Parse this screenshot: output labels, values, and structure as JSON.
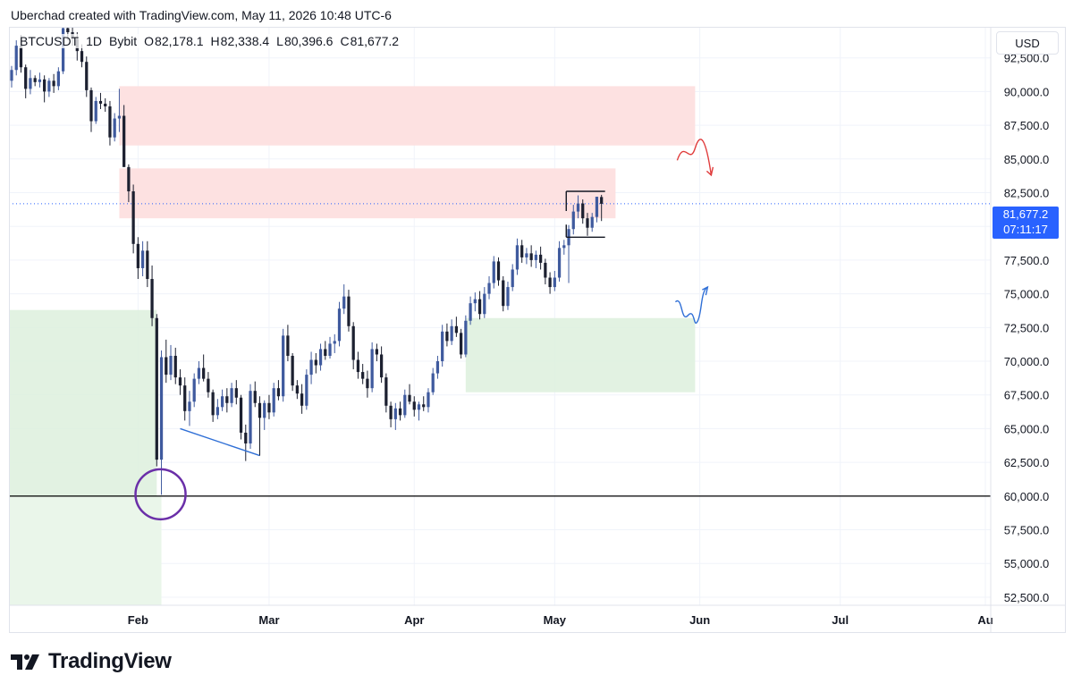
{
  "credit": "Uberchad created with TradingView.com, May 11, 2026 10:48 UTC-6",
  "symbol": {
    "name": "BTCUSDT",
    "interval": "1D",
    "exchange": "Bybit",
    "ohlc": [
      {
        "label": "O",
        "value": "82,178.1"
      },
      {
        "label": "H",
        "value": "82,338.4"
      },
      {
        "label": "L",
        "value": "80,396.6"
      },
      {
        "label": "C",
        "value": "81,677.2"
      }
    ]
  },
  "currency_button": "USD",
  "last_price": {
    "price": "81,677.2",
    "countdown": "07:11:17"
  },
  "brand": "TradingView",
  "colors": {
    "up": "#3f5a9e",
    "down": "#1c2030",
    "supply_zone": "#fde1e1",
    "demand_zone": "#ddf0dd",
    "trend_line": "#2f6fd6",
    "red_path": "#e03c3c",
    "blue_path": "#2f6fd6",
    "circle": "#6a2fa8",
    "price_line": "#2962ff"
  },
  "chart_data": {
    "type": "candlestick",
    "y_axis": {
      "ylim": [
        51900,
        94800
      ],
      "ticks": [
        92500,
        90000,
        87500,
        85000,
        82500,
        80000,
        77500,
        75000,
        72500,
        70000,
        67500,
        65000,
        62500,
        60000,
        57500,
        55000,
        52500
      ],
      "tick_labels": [
        "92,500.0",
        "90,000.0",
        "87,500.0",
        "85,000.0",
        "82,500.0",
        "80,000.0",
        "77,500.0",
        "75,000.0",
        "72,500.0",
        "70,000.0",
        "67,500.0",
        "65,000.0",
        "62,500.0",
        "60,000.0",
        "57,500.0",
        "55,000.0",
        "52,500.0"
      ]
    },
    "x_axis": {
      "xlim": [
        "2026-01-05",
        "2026-08-01"
      ],
      "ticks": [
        {
          "date": "2026-02-01",
          "label": "Feb"
        },
        {
          "date": "2026-03-01",
          "label": "Mar"
        },
        {
          "date": "2026-04-01",
          "label": "Apr"
        },
        {
          "date": "2026-05-01",
          "label": "May"
        },
        {
          "date": "2026-06-01",
          "label": "Jun"
        },
        {
          "date": "2026-07-01",
          "label": "Jul"
        },
        {
          "date": "2026-08-01",
          "label": "Au"
        }
      ]
    },
    "grid": true,
    "last_close": 81677.2,
    "candles": [
      {
        "date": "2026-01-05",
        "o": 90800,
        "h": 91900,
        "l": 90300,
        "c": 91600
      },
      {
        "date": "2026-01-06",
        "o": 91600,
        "h": 93800,
        "l": 91200,
        "c": 93400
      },
      {
        "date": "2026-01-07",
        "o": 93400,
        "h": 94200,
        "l": 91400,
        "c": 91800
      },
      {
        "date": "2026-01-08",
        "o": 91800,
        "h": 92000,
        "l": 89500,
        "c": 90200
      },
      {
        "date": "2026-01-09",
        "o": 90200,
        "h": 91600,
        "l": 89800,
        "c": 91000
      },
      {
        "date": "2026-01-10",
        "o": 91000,
        "h": 91200,
        "l": 90400,
        "c": 90700
      },
      {
        "date": "2026-01-11",
        "o": 90700,
        "h": 91400,
        "l": 90300,
        "c": 90900
      },
      {
        "date": "2026-01-12",
        "o": 90900,
        "h": 91200,
        "l": 89200,
        "c": 90000
      },
      {
        "date": "2026-01-13",
        "o": 90000,
        "h": 91000,
        "l": 89600,
        "c": 90800
      },
      {
        "date": "2026-01-14",
        "o": 90800,
        "h": 91300,
        "l": 89900,
        "c": 90400
      },
      {
        "date": "2026-01-15",
        "o": 90400,
        "h": 91800,
        "l": 90100,
        "c": 91500
      },
      {
        "date": "2026-01-16",
        "o": 91500,
        "h": 95200,
        "l": 91300,
        "c": 94700
      },
      {
        "date": "2026-01-17",
        "o": 94700,
        "h": 95200,
        "l": 93800,
        "c": 94400
      },
      {
        "date": "2026-01-18",
        "o": 94400,
        "h": 94900,
        "l": 93400,
        "c": 93900
      },
      {
        "date": "2026-01-19",
        "o": 93900,
        "h": 94400,
        "l": 92300,
        "c": 93000
      },
      {
        "date": "2026-01-20",
        "o": 93000,
        "h": 93500,
        "l": 91800,
        "c": 92200
      },
      {
        "date": "2026-01-21",
        "o": 92200,
        "h": 92600,
        "l": 89600,
        "c": 90100
      },
      {
        "date": "2026-01-22",
        "o": 90100,
        "h": 90300,
        "l": 87000,
        "c": 87800
      },
      {
        "date": "2026-01-23",
        "o": 87800,
        "h": 89600,
        "l": 87600,
        "c": 89300
      },
      {
        "date": "2026-01-24",
        "o": 89300,
        "h": 89900,
        "l": 88700,
        "c": 89100
      },
      {
        "date": "2026-01-25",
        "o": 89100,
        "h": 89500,
        "l": 88500,
        "c": 88900
      },
      {
        "date": "2026-01-26",
        "o": 88900,
        "h": 89300,
        "l": 86000,
        "c": 86600
      },
      {
        "date": "2026-01-27",
        "o": 86600,
        "h": 88400,
        "l": 86300,
        "c": 88000
      },
      {
        "date": "2026-01-28",
        "o": 88000,
        "h": 90200,
        "l": 87000,
        "c": 88200
      },
      {
        "date": "2026-01-29",
        "o": 88200,
        "h": 89000,
        "l": 84800,
        "c": 84400
      },
      {
        "date": "2026-01-30",
        "o": 84400,
        "h": 84600,
        "l": 81800,
        "c": 82600
      },
      {
        "date": "2026-01-31",
        "o": 82600,
        "h": 83100,
        "l": 78000,
        "c": 78700
      },
      {
        "date": "2026-02-01",
        "o": 78700,
        "h": 79200,
        "l": 76100,
        "c": 76900
      },
      {
        "date": "2026-02-02",
        "o": 76900,
        "h": 78900,
        "l": 76300,
        "c": 78200
      },
      {
        "date": "2026-02-03",
        "o": 78200,
        "h": 78900,
        "l": 75500,
        "c": 76100
      },
      {
        "date": "2026-02-04",
        "o": 76100,
        "h": 77100,
        "l": 72600,
        "c": 73200
      },
      {
        "date": "2026-02-05",
        "o": 73200,
        "h": 73500,
        "l": 62200,
        "c": 62700
      },
      {
        "date": "2026-02-06",
        "o": 62700,
        "h": 70800,
        "l": 60100,
        "c": 70300
      },
      {
        "date": "2026-02-07",
        "o": 70300,
        "h": 71600,
        "l": 68400,
        "c": 69000
      },
      {
        "date": "2026-02-08",
        "o": 69000,
        "h": 71200,
        "l": 68600,
        "c": 70400
      },
      {
        "date": "2026-02-09",
        "o": 70400,
        "h": 71000,
        "l": 68300,
        "c": 68800
      },
      {
        "date": "2026-02-10",
        "o": 68800,
        "h": 69400,
        "l": 67500,
        "c": 68200
      },
      {
        "date": "2026-02-11",
        "o": 68200,
        "h": 68800,
        "l": 65600,
        "c": 66300
      },
      {
        "date": "2026-02-12",
        "o": 66300,
        "h": 67800,
        "l": 65200,
        "c": 67000
      },
      {
        "date": "2026-02-13",
        "o": 67000,
        "h": 69100,
        "l": 66600,
        "c": 68700
      },
      {
        "date": "2026-02-14",
        "o": 68700,
        "h": 70000,
        "l": 68300,
        "c": 69500
      },
      {
        "date": "2026-02-15",
        "o": 69500,
        "h": 70500,
        "l": 68500,
        "c": 68700
      },
      {
        "date": "2026-02-16",
        "o": 68700,
        "h": 69200,
        "l": 67300,
        "c": 67700
      },
      {
        "date": "2026-02-17",
        "o": 67700,
        "h": 67900,
        "l": 65500,
        "c": 66000
      },
      {
        "date": "2026-02-18",
        "o": 66000,
        "h": 67200,
        "l": 65700,
        "c": 66600
      },
      {
        "date": "2026-02-19",
        "o": 66600,
        "h": 67900,
        "l": 66300,
        "c": 67400
      },
      {
        "date": "2026-02-20",
        "o": 67400,
        "h": 68000,
        "l": 66200,
        "c": 66900
      },
      {
        "date": "2026-02-21",
        "o": 66900,
        "h": 68400,
        "l": 66600,
        "c": 68000
      },
      {
        "date": "2026-02-22",
        "o": 68000,
        "h": 68600,
        "l": 66800,
        "c": 67300
      },
      {
        "date": "2026-02-23",
        "o": 67300,
        "h": 67500,
        "l": 64200,
        "c": 64700
      },
      {
        "date": "2026-02-24",
        "o": 64700,
        "h": 65300,
        "l": 62600,
        "c": 63900
      },
      {
        "date": "2026-02-25",
        "o": 63900,
        "h": 68300,
        "l": 63500,
        "c": 67800
      },
      {
        "date": "2026-02-26",
        "o": 67800,
        "h": 68500,
        "l": 66600,
        "c": 66900
      },
      {
        "date": "2026-02-27",
        "o": 66900,
        "h": 67400,
        "l": 65300,
        "c": 65800
      },
      {
        "date": "2026-02-28",
        "o": 65800,
        "h": 67100,
        "l": 64900,
        "c": 66900
      },
      {
        "date": "2026-03-01",
        "o": 66900,
        "h": 67500,
        "l": 65700,
        "c": 66200
      },
      {
        "date": "2026-03-02",
        "o": 66200,
        "h": 68400,
        "l": 65900,
        "c": 68000
      },
      {
        "date": "2026-03-03",
        "o": 68000,
        "h": 68600,
        "l": 67100,
        "c": 67400
      },
      {
        "date": "2026-03-04",
        "o": 67400,
        "h": 72400,
        "l": 67000,
        "c": 71900
      },
      {
        "date": "2026-03-05",
        "o": 71900,
        "h": 72700,
        "l": 70000,
        "c": 70400
      },
      {
        "date": "2026-03-06",
        "o": 70400,
        "h": 70600,
        "l": 67800,
        "c": 68200
      },
      {
        "date": "2026-03-07",
        "o": 68200,
        "h": 68600,
        "l": 67200,
        "c": 67600
      },
      {
        "date": "2026-03-08",
        "o": 67600,
        "h": 68300,
        "l": 66100,
        "c": 66700
      },
      {
        "date": "2026-03-09",
        "o": 66700,
        "h": 69400,
        "l": 66400,
        "c": 69000
      },
      {
        "date": "2026-03-10",
        "o": 69000,
        "h": 70700,
        "l": 68300,
        "c": 70100
      },
      {
        "date": "2026-03-11",
        "o": 70100,
        "h": 70600,
        "l": 69100,
        "c": 69700
      },
      {
        "date": "2026-03-12",
        "o": 69700,
        "h": 71300,
        "l": 69300,
        "c": 70900
      },
      {
        "date": "2026-03-13",
        "o": 70900,
        "h": 71500,
        "l": 70100,
        "c": 70400
      },
      {
        "date": "2026-03-14",
        "o": 70400,
        "h": 71800,
        "l": 70200,
        "c": 71300
      },
      {
        "date": "2026-03-15",
        "o": 71300,
        "h": 72000,
        "l": 70600,
        "c": 71500
      },
      {
        "date": "2026-03-16",
        "o": 71500,
        "h": 74400,
        "l": 71100,
        "c": 73900
      },
      {
        "date": "2026-03-17",
        "o": 73900,
        "h": 75700,
        "l": 73500,
        "c": 74800
      },
      {
        "date": "2026-03-18",
        "o": 74800,
        "h": 75300,
        "l": 72200,
        "c": 72600
      },
      {
        "date": "2026-03-19",
        "o": 72600,
        "h": 72900,
        "l": 69400,
        "c": 70100
      },
      {
        "date": "2026-03-20",
        "o": 70100,
        "h": 70700,
        "l": 68700,
        "c": 69200
      },
      {
        "date": "2026-03-21",
        "o": 69200,
        "h": 69800,
        "l": 68300,
        "c": 68700
      },
      {
        "date": "2026-03-22",
        "o": 68700,
        "h": 69300,
        "l": 67300,
        "c": 68000
      },
      {
        "date": "2026-03-23",
        "o": 68000,
        "h": 71400,
        "l": 67700,
        "c": 70900
      },
      {
        "date": "2026-03-24",
        "o": 70900,
        "h": 71300,
        "l": 70000,
        "c": 70500
      },
      {
        "date": "2026-03-25",
        "o": 70500,
        "h": 71100,
        "l": 68400,
        "c": 68800
      },
      {
        "date": "2026-03-26",
        "o": 68800,
        "h": 69100,
        "l": 66200,
        "c": 66700
      },
      {
        "date": "2026-03-27",
        "o": 66700,
        "h": 67000,
        "l": 65100,
        "c": 65700
      },
      {
        "date": "2026-03-28",
        "o": 65700,
        "h": 66900,
        "l": 64900,
        "c": 66500
      },
      {
        "date": "2026-03-29",
        "o": 66500,
        "h": 67000,
        "l": 65600,
        "c": 66000
      },
      {
        "date": "2026-03-30",
        "o": 66000,
        "h": 67900,
        "l": 65800,
        "c": 67500
      },
      {
        "date": "2026-03-31",
        "o": 67500,
        "h": 68300,
        "l": 66800,
        "c": 67000
      },
      {
        "date": "2026-04-01",
        "o": 67000,
        "h": 67400,
        "l": 65900,
        "c": 66400
      },
      {
        "date": "2026-04-02",
        "o": 66400,
        "h": 67000,
        "l": 65600,
        "c": 66800
      },
      {
        "date": "2026-04-03",
        "o": 66800,
        "h": 67400,
        "l": 66300,
        "c": 66600
      },
      {
        "date": "2026-04-04",
        "o": 66600,
        "h": 68000,
        "l": 66200,
        "c": 67700
      },
      {
        "date": "2026-04-05",
        "o": 67700,
        "h": 69500,
        "l": 67500,
        "c": 69100
      },
      {
        "date": "2026-04-06",
        "o": 69100,
        "h": 70400,
        "l": 68700,
        "c": 70000
      },
      {
        "date": "2026-04-07",
        "o": 70000,
        "h": 72700,
        "l": 69600,
        "c": 72200
      },
      {
        "date": "2026-04-08",
        "o": 72200,
        "h": 72800,
        "l": 71100,
        "c": 71500
      },
      {
        "date": "2026-04-09",
        "o": 71500,
        "h": 73100,
        "l": 71200,
        "c": 72600
      },
      {
        "date": "2026-04-10",
        "o": 72600,
        "h": 73300,
        "l": 71800,
        "c": 72100
      },
      {
        "date": "2026-04-11",
        "o": 72100,
        "h": 72400,
        "l": 70200,
        "c": 70500
      },
      {
        "date": "2026-04-12",
        "o": 70500,
        "h": 73400,
        "l": 70300,
        "c": 73000
      },
      {
        "date": "2026-04-13",
        "o": 73000,
        "h": 74800,
        "l": 72700,
        "c": 74300
      },
      {
        "date": "2026-04-14",
        "o": 74300,
        "h": 75100,
        "l": 73700,
        "c": 74600
      },
      {
        "date": "2026-04-15",
        "o": 74600,
        "h": 75200,
        "l": 73100,
        "c": 73500
      },
      {
        "date": "2026-04-16",
        "o": 73500,
        "h": 75500,
        "l": 73200,
        "c": 75000
      },
      {
        "date": "2026-04-17",
        "o": 75000,
        "h": 76300,
        "l": 74600,
        "c": 75800
      },
      {
        "date": "2026-04-18",
        "o": 75800,
        "h": 77800,
        "l": 75400,
        "c": 77400
      },
      {
        "date": "2026-04-19",
        "o": 77400,
        "h": 77700,
        "l": 75600,
        "c": 76000
      },
      {
        "date": "2026-04-20",
        "o": 76000,
        "h": 76300,
        "l": 73700,
        "c": 74100
      },
      {
        "date": "2026-04-21",
        "o": 74100,
        "h": 75900,
        "l": 73800,
        "c": 75500
      },
      {
        "date": "2026-04-22",
        "o": 75500,
        "h": 77200,
        "l": 75200,
        "c": 76800
      },
      {
        "date": "2026-04-23",
        "o": 76800,
        "h": 79100,
        "l": 76400,
        "c": 78600
      },
      {
        "date": "2026-04-24",
        "o": 78600,
        "h": 79000,
        "l": 77300,
        "c": 77700
      },
      {
        "date": "2026-04-25",
        "o": 77700,
        "h": 78400,
        "l": 77200,
        "c": 78000
      },
      {
        "date": "2026-04-26",
        "o": 78000,
        "h": 78600,
        "l": 77000,
        "c": 77500
      },
      {
        "date": "2026-04-27",
        "o": 77500,
        "h": 78200,
        "l": 76900,
        "c": 77900
      },
      {
        "date": "2026-04-28",
        "o": 77900,
        "h": 78500,
        "l": 76800,
        "c": 77300
      },
      {
        "date": "2026-04-29",
        "o": 77300,
        "h": 77600,
        "l": 75700,
        "c": 76200
      },
      {
        "date": "2026-04-30",
        "o": 76200,
        "h": 76600,
        "l": 75000,
        "c": 75500
      },
      {
        "date": "2026-05-01",
        "o": 75500,
        "h": 76700,
        "l": 75200,
        "c": 76200
      },
      {
        "date": "2026-05-02",
        "o": 76200,
        "h": 78900,
        "l": 75900,
        "c": 78400
      },
      {
        "date": "2026-05-03",
        "o": 78400,
        "h": 79000,
        "l": 77900,
        "c": 78600
      },
      {
        "date": "2026-05-04",
        "o": 78600,
        "h": 80100,
        "l": 75800,
        "c": 79800
      },
      {
        "date": "2026-05-05",
        "o": 79800,
        "h": 81600,
        "l": 79400,
        "c": 81100
      },
      {
        "date": "2026-05-06",
        "o": 81100,
        "h": 82300,
        "l": 80600,
        "c": 81700
      },
      {
        "date": "2026-05-07",
        "o": 81700,
        "h": 82000,
        "l": 80200,
        "c": 80600
      },
      {
        "date": "2026-05-08",
        "o": 80600,
        "h": 81000,
        "l": 79300,
        "c": 79900
      },
      {
        "date": "2026-05-09",
        "o": 79900,
        "h": 81000,
        "l": 79600,
        "c": 80700
      },
      {
        "date": "2026-05-10",
        "o": 80700,
        "h": 82000,
        "l": 80300,
        "c": 82200
      },
      {
        "date": "2026-05-11",
        "o": 82178.1,
        "h": 82338.4,
        "l": 80396.6,
        "c": 81677.2
      }
    ],
    "zones": [
      {
        "kind": "supply",
        "from": "2026-01-28",
        "to": "2026-05-31",
        "top": 90400,
        "bottom": 86000
      },
      {
        "kind": "supply",
        "from": "2026-01-28",
        "to": "2026-05-14",
        "top": 84300,
        "bottom": 80600
      },
      {
        "kind": "demand",
        "from": "2026-04-12",
        "to": "2026-05-31",
        "top": 73200,
        "bottom": 67700
      },
      {
        "kind": "demand",
        "from": "2026-01-05",
        "to": "2026-02-05",
        "top": 73800,
        "bottom": 59300
      },
      {
        "kind": "demand_light",
        "from": "2026-01-05",
        "to": "2026-02-06",
        "top": 60000,
        "bottom": 51800
      }
    ],
    "horizontal_level": 60000,
    "trend_line": [
      {
        "date": "2026-02-10",
        "price": 65000
      },
      {
        "date": "2026-02-27",
        "price": 63000
      }
    ],
    "range_box": {
      "from": "2026-05-05",
      "to": "2026-05-11",
      "top": 82600,
      "bottom": 79200
    },
    "circle_marker": {
      "date": "2026-02-06",
      "price": 60000
    }
  }
}
